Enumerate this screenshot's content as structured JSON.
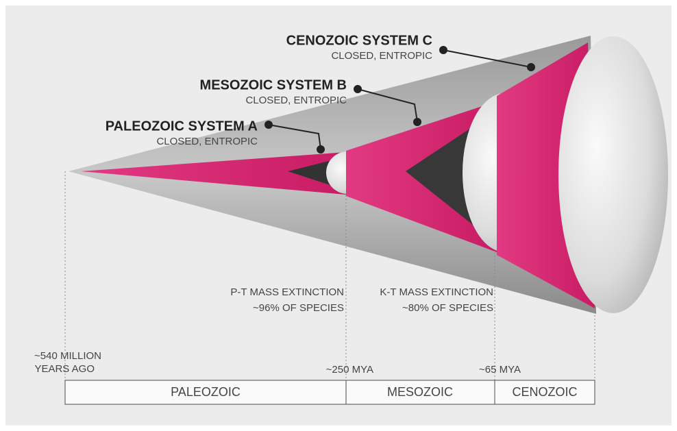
{
  "systems": [
    {
      "title": "PALEOZOIC SYSTEM A",
      "subtitle": "CLOSED, ENTROPIC"
    },
    {
      "title": "MESOZOIC SYSTEM B",
      "subtitle": "CLOSED, ENTROPIC"
    },
    {
      "title": "CENOZOIC SYSTEM C",
      "subtitle": "CLOSED, ENTROPIC"
    }
  ],
  "extinctions": [
    {
      "name": "P-T MASS EXTINCTION",
      "detail": "~96% OF SPECIES"
    },
    {
      "name": "K-T MASS EXTINCTION",
      "detail": "~80% OF SPECIES"
    }
  ],
  "timeline": {
    "start": [
      "~540 MILLION",
      "YEARS AGO"
    ],
    "markers": [
      "~250 MYA",
      "~65 MYA"
    ]
  },
  "eras": [
    "PALEOZOIC",
    "MESOZOIC",
    "CENOZOIC"
  ]
}
